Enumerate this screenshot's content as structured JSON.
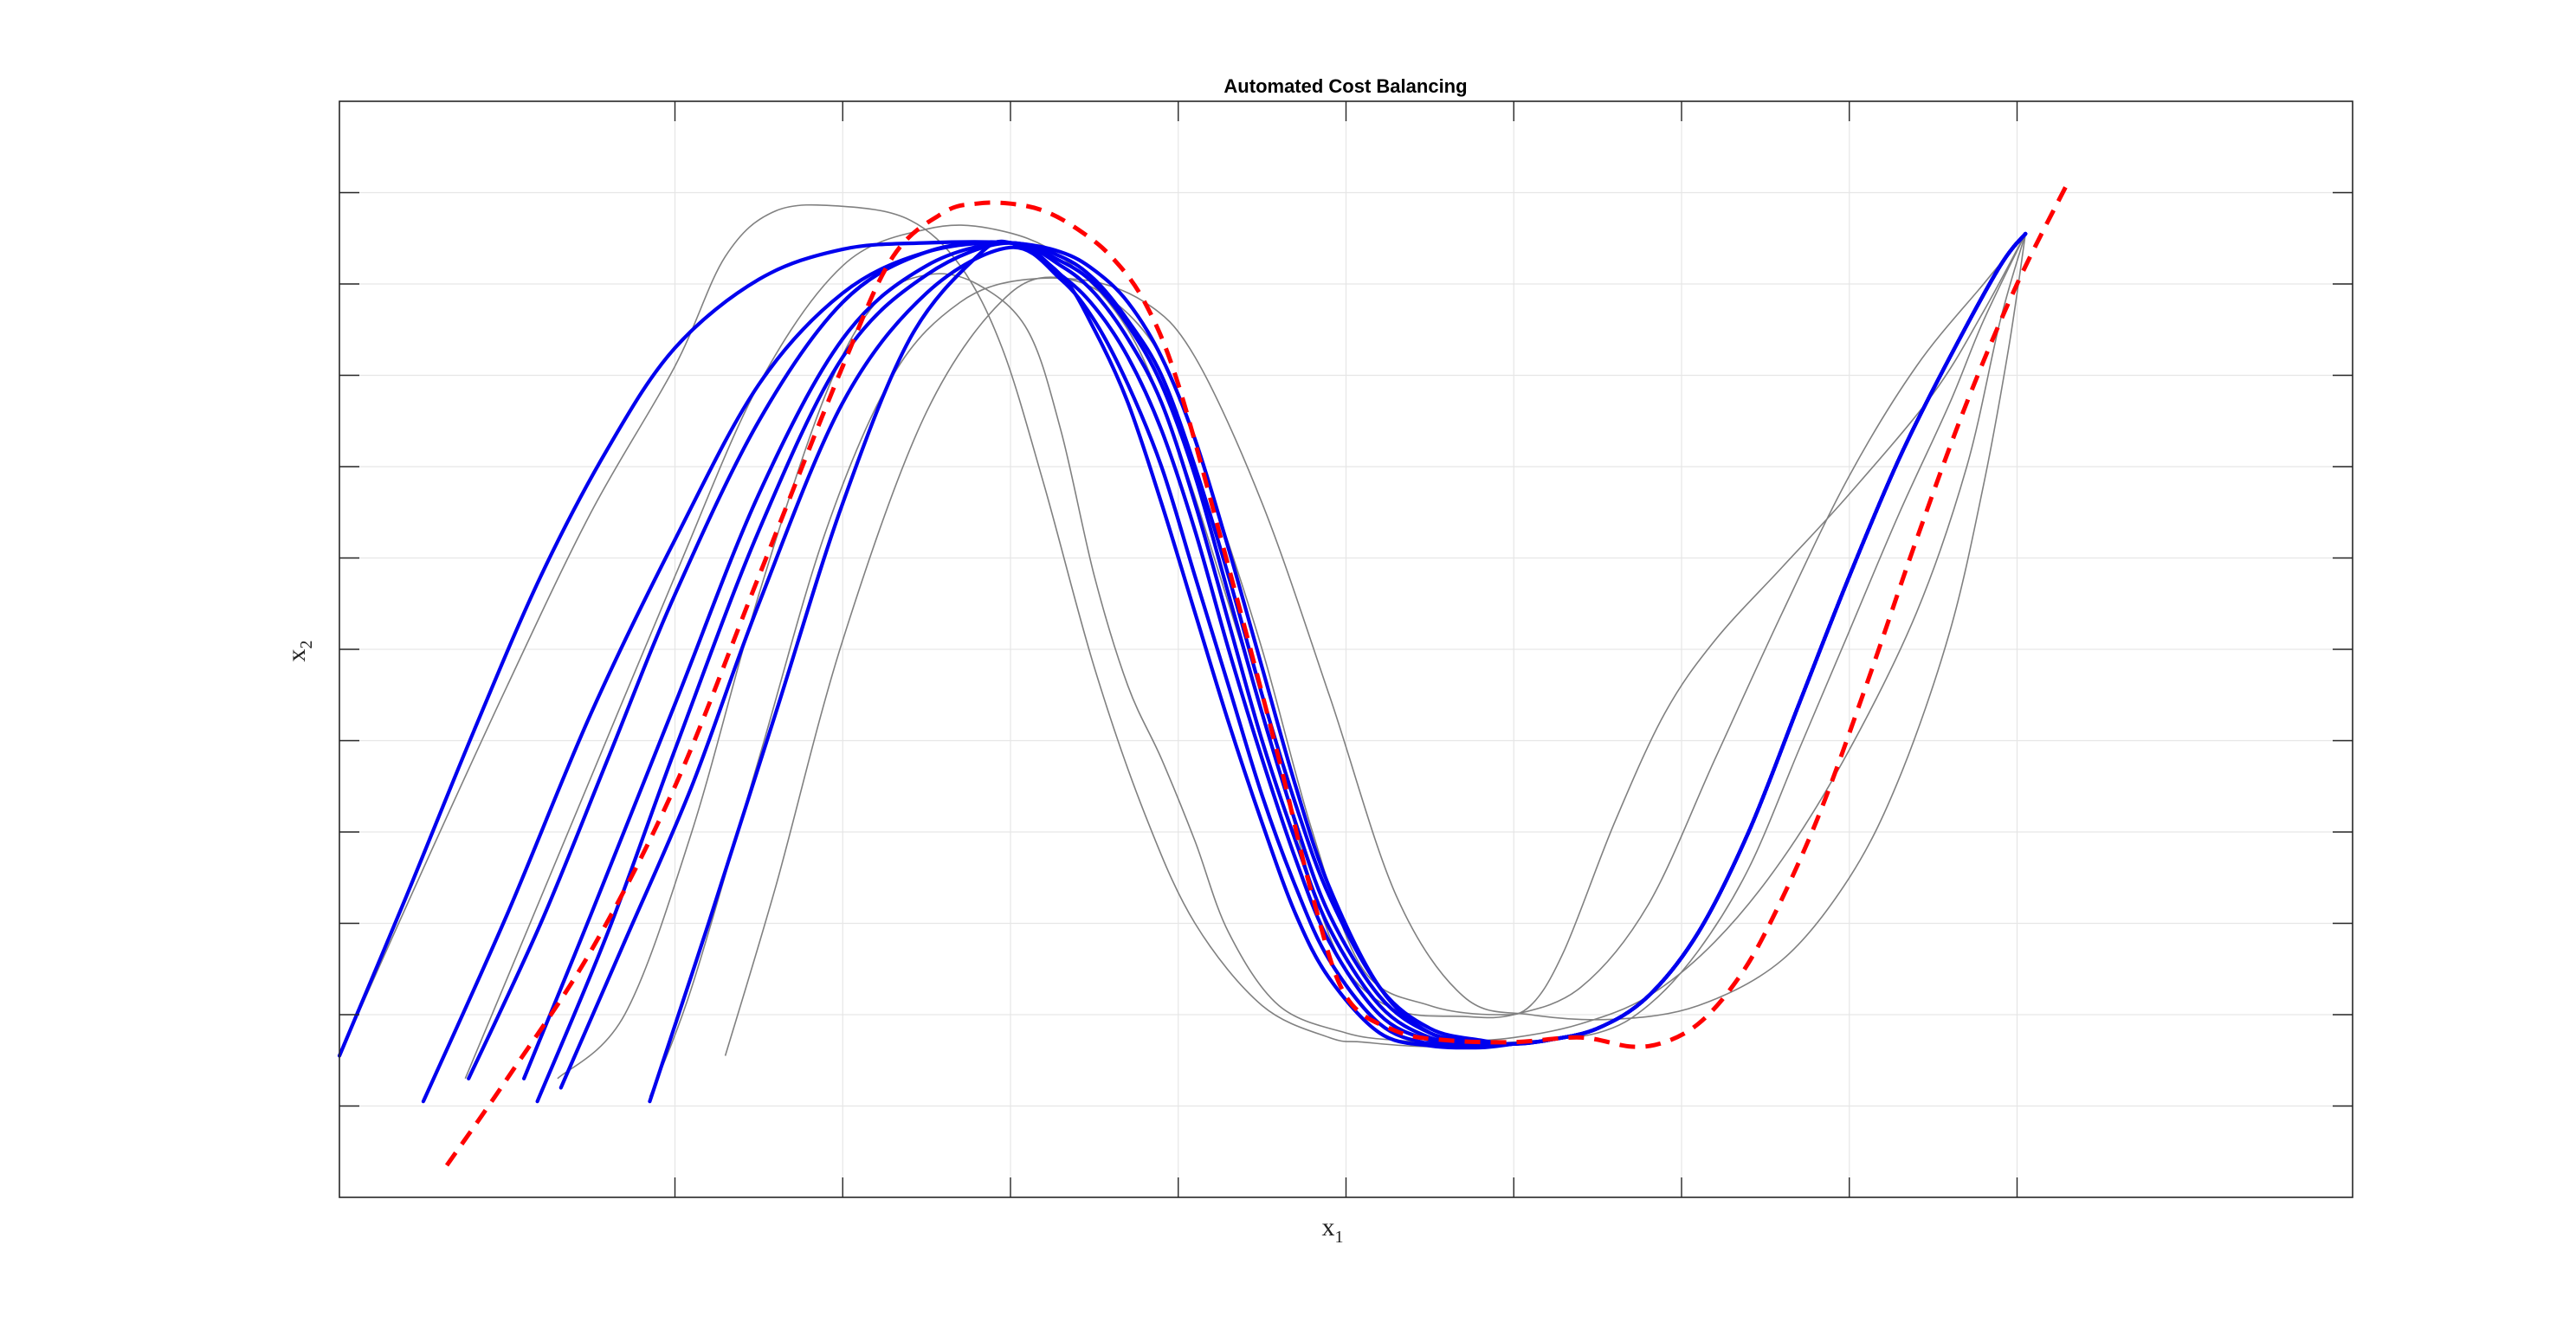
{
  "chart_data": {
    "type": "line",
    "title": "Automated Cost Balancing",
    "xlabel_base": "x",
    "xlabel_sub": "1",
    "ylabel_base": "x",
    "ylabel_sub": "2",
    "xlim": [
      0,
      12
    ],
    "ylim": [
      0,
      12
    ],
    "x_ticks": [
      2,
      3,
      4,
      5,
      6,
      7,
      8,
      9,
      10
    ],
    "y_ticks": [
      1,
      2,
      3,
      4,
      5,
      6,
      7,
      8,
      9,
      10,
      11
    ],
    "tick_labels_visible": false,
    "grid": true,
    "colors": {
      "reference": "#ff0000",
      "optimized": "#0000ee",
      "initial": "#808080",
      "grid": "#e6e6e6",
      "axes": "#262626"
    },
    "reference": {
      "style": "dashed",
      "x": [
        0.64,
        1.0,
        1.5,
        2.0,
        2.5,
        3.0,
        3.3,
        3.6,
        3.8,
        4.0,
        4.2,
        4.4,
        4.6,
        4.8,
        5.0,
        5.3,
        5.6,
        5.8,
        6.0,
        6.3,
        6.6,
        7.0,
        7.4,
        7.7,
        7.9,
        8.1,
        8.3,
        8.5,
        8.8,
        9.1,
        9.4,
        9.7,
        10.0,
        10.3
      ],
      "y": [
        0.35,
        1.3,
        2.7,
        4.5,
        6.8,
        9.1,
        10.3,
        10.78,
        10.88,
        10.88,
        10.8,
        10.6,
        10.3,
        9.8,
        8.9,
        6.9,
        4.8,
        3.3,
        2.2,
        1.82,
        1.72,
        1.7,
        1.75,
        1.65,
        1.7,
        1.9,
        2.3,
        2.9,
        4.1,
        5.6,
        7.2,
        8.7,
        10.0,
        11.1
      ]
    },
    "optimized": {
      "style": "solid",
      "series": [
        {
          "x": [
            0.0,
            0.4,
            0.8,
            1.2,
            1.6,
            2.0,
            2.5,
            3.0,
            3.5,
            4.0,
            4.3,
            4.5,
            4.7,
            4.9,
            5.1,
            5.3,
            5.5,
            5.7,
            5.9,
            6.2,
            6.5,
            6.8,
            7.0,
            7.2,
            7.5,
            7.8,
            8.1,
            8.4,
            8.7,
            9.0,
            9.3,
            9.6,
            9.9,
            10.05
          ],
          "y": [
            1.55,
            3.3,
            5.1,
            6.8,
            8.2,
            9.3,
            10.05,
            10.38,
            10.45,
            10.45,
            10.35,
            10.15,
            9.8,
            9.2,
            8.3,
            7.1,
            5.8,
            4.5,
            3.4,
            2.3,
            1.8,
            1.7,
            1.68,
            1.72,
            1.85,
            2.2,
            2.9,
            4.0,
            5.4,
            6.8,
            8.1,
            9.2,
            10.2,
            10.55
          ]
        },
        {
          "x": [
            0.5,
            1.0,
            1.5,
            2.0,
            2.5,
            3.0,
            3.5,
            4.0,
            4.3,
            4.5,
            4.7,
            4.9,
            5.1,
            5.3,
            5.5,
            5.7,
            5.9,
            6.2,
            6.5,
            6.8,
            7.0,
            7.2,
            7.5,
            7.8,
            8.1,
            8.4,
            8.7,
            9.0,
            9.3,
            9.6,
            9.9,
            10.05
          ],
          "y": [
            1.05,
            3.1,
            5.3,
            7.2,
            8.9,
            9.9,
            10.35,
            10.45,
            10.3,
            10.05,
            9.6,
            9.0,
            8.0,
            6.8,
            5.5,
            4.3,
            3.3,
            2.3,
            1.85,
            1.72,
            1.68,
            1.72,
            1.85,
            2.2,
            2.9,
            4.0,
            5.4,
            6.8,
            8.1,
            9.2,
            10.2,
            10.55
          ]
        },
        {
          "x": [
            0.77,
            1.2,
            1.6,
            2.0,
            2.5,
            3.0,
            3.5,
            4.0,
            4.3,
            4.5,
            4.7,
            4.9,
            5.1,
            5.3,
            5.5,
            5.7,
            5.9,
            6.2,
            6.5,
            6.8,
            7.0,
            7.2,
            7.5,
            7.8,
            8.1,
            8.4,
            8.7,
            9.0,
            9.3,
            9.6,
            9.9,
            10.05
          ],
          "y": [
            1.3,
            3.0,
            4.8,
            6.6,
            8.5,
            9.8,
            10.35,
            10.45,
            10.25,
            10.0,
            9.55,
            8.9,
            7.9,
            6.6,
            5.3,
            4.1,
            3.1,
            2.2,
            1.8,
            1.7,
            1.68,
            1.72,
            1.85,
            2.2,
            2.9,
            4.0,
            5.4,
            6.8,
            8.1,
            9.2,
            10.2,
            10.55
          ]
        },
        {
          "x": [
            1.1,
            1.5,
            2.0,
            2.5,
            3.0,
            3.5,
            4.0,
            4.3,
            4.5,
            4.7,
            4.9,
            5.1,
            5.3,
            5.5,
            5.7,
            5.9,
            6.2,
            6.5,
            6.8,
            7.0,
            7.2,
            7.5,
            7.8,
            8.1,
            8.4,
            8.7,
            9.0,
            9.3,
            9.6,
            9.9,
            10.05
          ],
          "y": [
            1.3,
            3.1,
            5.4,
            7.7,
            9.4,
            10.2,
            10.45,
            10.2,
            9.9,
            9.4,
            8.7,
            7.6,
            6.3,
            5.0,
            3.9,
            2.95,
            2.1,
            1.75,
            1.68,
            1.68,
            1.72,
            1.85,
            2.2,
            2.9,
            4.0,
            5.4,
            6.8,
            8.1,
            9.2,
            10.2,
            10.55
          ]
        },
        {
          "x": [
            1.18,
            1.6,
            2.0,
            2.5,
            3.0,
            3.5,
            4.0,
            4.3,
            4.5,
            4.7,
            4.9,
            5.1,
            5.3,
            5.5,
            5.7,
            5.9,
            6.2,
            6.5,
            6.8,
            7.0,
            7.2,
            7.5,
            7.8,
            8.1,
            8.4,
            8.7,
            9.0,
            9.3,
            9.6,
            9.9,
            10.05
          ],
          "y": [
            1.05,
            2.9,
            4.9,
            7.3,
            9.2,
            10.1,
            10.45,
            10.1,
            9.75,
            9.2,
            8.4,
            7.3,
            6.0,
            4.8,
            3.7,
            2.8,
            2.0,
            1.72,
            1.66,
            1.68,
            1.72,
            1.85,
            2.2,
            2.9,
            4.0,
            5.4,
            6.8,
            8.1,
            9.2,
            10.2,
            10.55
          ]
        },
        {
          "x": [
            1.32,
            1.7,
            2.1,
            2.5,
            3.0,
            3.5,
            4.0,
            4.3,
            4.5,
            4.7,
            4.9,
            5.1,
            5.3,
            5.5,
            5.7,
            5.9,
            6.2,
            6.5,
            6.8,
            7.0,
            7.2,
            7.5,
            7.8,
            8.1,
            8.4,
            8.7,
            9.0,
            9.3,
            9.6,
            9.9,
            10.05
          ],
          "y": [
            1.2,
            2.8,
            4.5,
            6.5,
            8.7,
            9.9,
            10.4,
            10.05,
            9.6,
            8.9,
            8.0,
            6.8,
            5.6,
            4.4,
            3.4,
            2.6,
            1.9,
            1.68,
            1.65,
            1.68,
            1.72,
            1.85,
            2.2,
            2.9,
            4.0,
            5.4,
            6.8,
            8.1,
            9.2,
            10.2,
            10.55
          ]
        },
        {
          "x": [
            1.85,
            2.2,
            2.6,
            3.0,
            3.4,
            3.8,
            4.0,
            4.3,
            4.5,
            4.7,
            4.9,
            5.1,
            5.3,
            5.5,
            5.7,
            5.9,
            6.2,
            6.5,
            6.8,
            7.0,
            7.2,
            7.5,
            7.8,
            8.1,
            8.4,
            8.7,
            9.0,
            9.3,
            9.6,
            9.9,
            10.05
          ],
          "y": [
            1.05,
            3.0,
            5.3,
            7.6,
            9.4,
            10.3,
            10.45,
            10.1,
            9.5,
            8.7,
            7.6,
            6.4,
            5.2,
            4.1,
            3.1,
            2.4,
            1.8,
            1.66,
            1.64,
            1.68,
            1.72,
            1.85,
            2.2,
            2.9,
            4.0,
            5.4,
            6.8,
            8.1,
            9.2,
            10.2,
            10.55
          ]
        }
      ]
    },
    "initial": {
      "style": "solid-thin",
      "series": [
        {
          "x": [
            0.0,
            0.5,
            1.0,
            1.5,
            2.0,
            2.3,
            2.6,
            3.0,
            3.4,
            3.7,
            3.95,
            4.2,
            4.5,
            4.8,
            5.1,
            5.5,
            5.9,
            6.1,
            6.5,
            7.0,
            7.5,
            7.8,
            8.1,
            8.4,
            8.7,
            9.0,
            9.3,
            9.6,
            9.8,
            10.05
          ],
          "y": [
            1.55,
            3.6,
            5.6,
            7.5,
            9.1,
            10.3,
            10.8,
            10.85,
            10.7,
            10.2,
            9.3,
            7.8,
            5.8,
            4.2,
            3.0,
            2.1,
            1.75,
            1.7,
            1.65,
            1.7,
            1.8,
            2.1,
            2.7,
            3.6,
            4.9,
            6.2,
            7.5,
            8.7,
            9.6,
            10.55
          ]
        },
        {
          "x": [
            0.75,
            1.0,
            1.5,
            2.0,
            2.5,
            3.0,
            3.5,
            3.9,
            4.3,
            4.7,
            5.0,
            5.3,
            5.6,
            5.8,
            6.0,
            6.3,
            6.7,
            7.0,
            7.4,
            7.8,
            8.2,
            8.6,
            9.0,
            9.4,
            9.8,
            10.05
          ],
          "y": [
            1.3,
            2.4,
            4.6,
            6.8,
            8.9,
            10.2,
            10.6,
            10.6,
            10.3,
            9.5,
            8.2,
            6.5,
            4.7,
            3.4,
            2.5,
            2.05,
            1.98,
            2.0,
            2.3,
            3.2,
            4.8,
            6.4,
            7.9,
            9.1,
            10.0,
            10.55
          ]
        },
        {
          "x": [
            1.3,
            1.7,
            2.1,
            2.5,
            2.9,
            3.2,
            3.5,
            3.8,
            4.1,
            4.3,
            4.5,
            4.7,
            4.9,
            5.1,
            5.3,
            5.6,
            6.0,
            6.3,
            6.6,
            7.0,
            7.4,
            7.8,
            8.2,
            8.6,
            9.0,
            9.4,
            9.7,
            9.9,
            10.05
          ],
          "y": [
            1.3,
            2.0,
            4.0,
            6.6,
            8.8,
            9.8,
            10.1,
            10.0,
            9.5,
            8.4,
            6.8,
            5.6,
            4.8,
            3.9,
            2.9,
            2.1,
            1.8,
            1.72,
            1.7,
            1.75,
            1.9,
            2.2,
            2.8,
            3.7,
            4.9,
            6.4,
            8.0,
            9.6,
            10.55
          ]
        },
        {
          "x": [
            1.85,
            2.1,
            2.5,
            2.9,
            3.3,
            3.7,
            4.1,
            4.5,
            4.9,
            5.2,
            5.5,
            5.8,
            6.1,
            6.5,
            6.9,
            7.1,
            7.3,
            7.6,
            7.9,
            8.2,
            8.6,
            9.0,
            9.5,
            9.8,
            10.05
          ],
          "y": [
            1.1,
            2.3,
            4.8,
            7.3,
            9.0,
            9.8,
            10.05,
            9.95,
            9.2,
            7.7,
            6.0,
            4.0,
            2.5,
            2.1,
            2.0,
            2.1,
            2.7,
            4.1,
            5.3,
            6.1,
            6.9,
            7.7,
            8.8,
            9.7,
            10.55
          ]
        },
        {
          "x": [
            2.3,
            2.6,
            3.0,
            3.5,
            4.0,
            4.4,
            4.8,
            5.1,
            5.5,
            5.9,
            6.3,
            6.7,
            7.1,
            7.6,
            8.1,
            8.6,
            9.0,
            9.3,
            9.6,
            9.8,
            9.95,
            10.05
          ],
          "y": [
            1.55,
            3.4,
            6.1,
            8.6,
            9.9,
            10.05,
            9.8,
            9.2,
            7.6,
            5.5,
            3.3,
            2.2,
            2.0,
            1.95,
            2.1,
            2.6,
            3.5,
            4.6,
            6.2,
            7.8,
            9.3,
            10.55
          ]
        }
      ]
    }
  }
}
